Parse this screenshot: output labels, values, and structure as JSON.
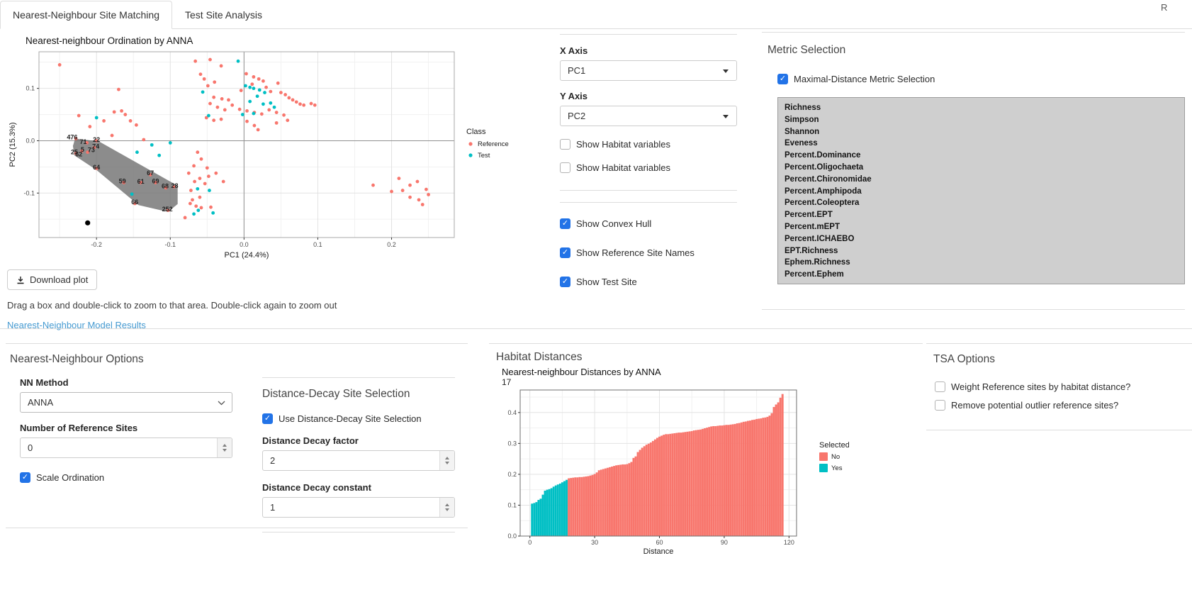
{
  "window": {
    "r_label": "R"
  },
  "tabs": [
    {
      "label": "Nearest-Neighbour Site Matching",
      "active": true
    },
    {
      "label": "Test Site Analysis",
      "active": false
    }
  ],
  "ordination": {
    "title": "Nearest-neighbour Ordination by ANNA",
    "download_button": "Download plot",
    "drag_note": "Drag a box and double-click to zoom to that area. Double-click again to zoom out",
    "results_link": "Nearest-Neighbour Model Results"
  },
  "axis_controls": {
    "x_axis_label": "X Axis",
    "x_axis_value": "PC1",
    "y_axis_label": "Y Axis",
    "y_axis_value": "PC2",
    "habitat_checkboxes": [
      {
        "label": "Show Habitat variables",
        "checked": false
      },
      {
        "label": "Show Habitat variables",
        "checked": false
      }
    ],
    "display_checkboxes": [
      {
        "label": "Show Convex Hull",
        "checked": true
      },
      {
        "label": "Show Reference Site Names",
        "checked": true
      },
      {
        "label": "Show Test Site",
        "checked": true
      }
    ]
  },
  "metric_selection": {
    "title": "Metric Selection",
    "maximal_checkbox": {
      "label": "Maximal-Distance Metric Selection",
      "checked": true
    },
    "items": [
      "Richness",
      "Simpson",
      "Shannon",
      "Eveness",
      "Percent.Dominance",
      "Percent.Oligochaeta",
      "Percent.Chironomidae",
      "Percent.Amphipoda",
      "Percent.Coleoptera",
      "Percent.EPT",
      "Percent.mEPT",
      "Percent.ICHAEBO",
      "EPT.Richness",
      "Ephem.Richness",
      "Percent.Ephem"
    ]
  },
  "nn_options": {
    "title": "Nearest-Neighbour Options",
    "nn_method_label": "NN Method",
    "nn_method_value": "ANNA",
    "n_ref_label": "Number of Reference Sites",
    "n_ref_value": "0",
    "scale_ordination": {
      "label": "Scale Ordination",
      "checked": true
    },
    "dd": {
      "title": "Distance-Decay Site Selection",
      "use_checkbox": {
        "label": "Use Distance-Decay Site Selection",
        "checked": true
      },
      "factor_label": "Distance Decay factor",
      "factor_value": "2",
      "constant_label": "Distance Decay constant",
      "constant_value": "1"
    }
  },
  "habitat_distances": {
    "title": "Habitat Distances"
  },
  "tsa_options": {
    "title": "TSA Options",
    "checkboxes": [
      {
        "label": "Weight Reference sites by habitat distance?",
        "checked": false
      },
      {
        "label": "Remove potential outlier reference sites?",
        "checked": false
      }
    ]
  },
  "colors": {
    "reference": "#F8766D",
    "test": "#00BFC4",
    "black_point": "#000000",
    "hull": "#6b6b6b",
    "checkbox_blue": "#2273e7",
    "link": "#459ad1"
  },
  "chart_data": [
    {
      "type": "scatter",
      "title": "Nearest-neighbour Ordination by ANNA",
      "xlabel": "PC1 (24.4%)",
      "ylabel": "PC2 (15.3%)",
      "xlim": [
        -0.278,
        0.285
      ],
      "ylim": [
        -0.185,
        0.17
      ],
      "xticks": [
        -0.2,
        -0.1,
        0.0,
        0.1,
        0.2
      ],
      "yticks": [
        0.1,
        0.0,
        -0.1
      ],
      "grid": true,
      "legend": {
        "title": "Class",
        "position": "right",
        "entries": [
          {
            "label": "Reference",
            "color": "#F8766D"
          },
          {
            "label": "Test",
            "color": "#00BFC4"
          }
        ]
      },
      "series": [
        {
          "name": "Reference",
          "color": "#F8766D",
          "size": 2.4,
          "points": [
            [
              -0.066,
              0.152
            ],
            [
              -0.046,
              0.155
            ],
            [
              -0.031,
              0.143
            ],
            [
              -0.059,
              0.127
            ],
            [
              -0.054,
              0.118
            ],
            [
              -0.049,
              0.105
            ],
            [
              -0.04,
              0.112
            ],
            [
              0.003,
              0.128
            ],
            [
              0.013,
              0.122
            ],
            [
              0.02,
              0.118
            ],
            [
              0.026,
              0.114
            ],
            [
              -0.004,
              0.096
            ],
            [
              0.011,
              0.108
            ],
            [
              0.03,
              0.102
            ],
            [
              0.036,
              0.094
            ],
            [
              0.046,
              0.11
            ],
            [
              0.05,
              0.092
            ],
            [
              0.056,
              0.088
            ],
            [
              0.061,
              0.082
            ],
            [
              0.066,
              0.078
            ],
            [
              0.071,
              0.074
            ],
            [
              0.076,
              0.07
            ],
            [
              0.081,
              0.068
            ],
            [
              0.091,
              0.071
            ],
            [
              0.096,
              0.068
            ],
            [
              -0.041,
              0.083
            ],
            [
              -0.03,
              0.08
            ],
            [
              -0.021,
              0.078
            ],
            [
              -0.046,
              0.071
            ],
            [
              -0.036,
              0.064
            ],
            [
              -0.026,
              0.059
            ],
            [
              -0.016,
              0.068
            ],
            [
              -0.006,
              0.06
            ],
            [
              0.004,
              0.057
            ],
            [
              0.014,
              0.054
            ],
            [
              0.024,
              0.051
            ],
            [
              0.034,
              0.059
            ],
            [
              0.044,
              0.054
            ],
            [
              0.054,
              0.049
            ],
            [
              -0.051,
              0.044
            ],
            [
              -0.041,
              0.039
            ],
            [
              -0.031,
              0.041
            ],
            [
              0.004,
              0.037
            ],
            [
              0.014,
              0.029
            ],
            [
              0.019,
              0.021
            ],
            [
              0.044,
              0.034
            ],
            [
              0.059,
              0.039
            ],
            [
              -0.25,
              0.145
            ],
            [
              -0.17,
              0.098
            ],
            [
              -0.224,
              0.048
            ],
            [
              -0.209,
              0.027
            ],
            [
              -0.19,
              0.038
            ],
            [
              -0.176,
              0.055
            ],
            [
              -0.161,
              0.05
            ],
            [
              -0.154,
              0.038
            ],
            [
              -0.166,
              0.057
            ],
            [
              -0.146,
              0.03
            ],
            [
              -0.179,
              0.01
            ],
            [
              -0.136,
              0.002
            ],
            [
              -0.063,
              -0.022
            ],
            [
              -0.058,
              -0.035
            ],
            [
              -0.068,
              -0.048
            ],
            [
              -0.05,
              -0.052
            ],
            [
              -0.038,
              -0.062
            ],
            [
              -0.048,
              -0.068
            ],
            [
              -0.06,
              -0.072
            ],
            [
              -0.075,
              -0.062
            ],
            [
              -0.067,
              -0.078
            ],
            [
              -0.053,
              -0.082
            ],
            [
              -0.028,
              -0.078
            ],
            [
              -0.072,
              -0.095
            ],
            [
              -0.06,
              -0.108
            ],
            [
              -0.07,
              -0.113
            ],
            [
              -0.073,
              -0.12
            ],
            [
              -0.065,
              -0.125
            ],
            [
              -0.058,
              -0.128
            ],
            [
              -0.045,
              -0.127
            ],
            [
              -0.08,
              -0.147
            ],
            [
              0.175,
              -0.085
            ],
            [
              0.21,
              -0.072
            ],
            [
              0.215,
              -0.095
            ],
            [
              0.225,
              -0.085
            ],
            [
              0.235,
              -0.078
            ],
            [
              0.247,
              -0.093
            ],
            [
              0.225,
              -0.108
            ],
            [
              0.237,
              -0.113
            ],
            [
              0.25,
              -0.103
            ],
            [
              0.242,
              -0.122
            ],
            [
              0.2,
              -0.097
            ],
            [
              -0.228,
              0.004
            ],
            [
              -0.213,
              -0.004
            ],
            [
              -0.2,
              0.0
            ],
            [
              -0.203,
              -0.013
            ],
            [
              -0.212,
              -0.022
            ],
            [
              -0.22,
              -0.02
            ],
            [
              -0.228,
              -0.024
            ],
            [
              -0.2,
              -0.053
            ],
            [
              -0.163,
              -0.08
            ],
            [
              -0.127,
              -0.065
            ],
            [
              -0.14,
              -0.08
            ],
            [
              -0.12,
              -0.08
            ],
            [
              -0.106,
              -0.09
            ],
            [
              -0.095,
              -0.088
            ],
            [
              -0.148,
              -0.12
            ],
            [
              -0.103,
              -0.133
            ]
          ]
        },
        {
          "name": "Test",
          "color": "#00BFC4",
          "size": 2.4,
          "points": [
            [
              -0.2,
              0.044
            ],
            [
              -0.008,
              0.152
            ],
            [
              -0.056,
              0.093
            ],
            [
              0.002,
              0.105
            ],
            [
              0.008,
              0.102
            ],
            [
              0.013,
              0.1
            ],
            [
              0.021,
              0.097
            ],
            [
              0.028,
              0.092
            ],
            [
              0.018,
              0.085
            ],
            [
              0.008,
              0.075
            ],
            [
              0.026,
              0.07
            ],
            [
              0.036,
              0.072
            ],
            [
              0.041,
              0.064
            ],
            [
              0.013,
              0.052
            ],
            [
              -0.002,
              0.05
            ],
            [
              -0.048,
              0.048
            ],
            [
              -0.125,
              -0.008
            ],
            [
              -0.1,
              -0.004
            ],
            [
              -0.145,
              -0.022
            ],
            [
              -0.115,
              -0.028
            ],
            [
              -0.152,
              -0.102
            ],
            [
              -0.063,
              -0.092
            ],
            [
              -0.047,
              -0.095
            ],
            [
              -0.062,
              -0.133
            ],
            [
              -0.068,
              -0.14
            ],
            [
              -0.042,
              -0.138
            ]
          ]
        },
        {
          "name": "TestSitePoint",
          "color": "#000000",
          "size": 3.6,
          "points": [
            [
              -0.212,
              -0.157
            ]
          ]
        }
      ],
      "hull": [
        [
          -0.229,
          0.004
        ],
        [
          -0.197,
          -0.001
        ],
        [
          -0.09,
          -0.086
        ],
        [
          -0.09,
          -0.121
        ],
        [
          -0.103,
          -0.136
        ],
        [
          -0.143,
          -0.123
        ],
        [
          -0.2,
          -0.056
        ],
        [
          -0.23,
          -0.028
        ],
        [
          -0.232,
          -0.01
        ]
      ],
      "site_labels": [
        {
          "label": "476",
          "x": -0.233,
          "y": 0.007
        },
        {
          "label": "71",
          "x": -0.218,
          "y": -0.002
        },
        {
          "label": "22",
          "x": -0.2,
          "y": 0.002
        },
        {
          "label": "74",
          "x": -0.201,
          "y": -0.011
        },
        {
          "label": "5",
          "x": -0.219,
          "y": -0.017
        },
        {
          "label": "73",
          "x": -0.207,
          "y": -0.018
        },
        {
          "label": "25",
          "x": -0.23,
          "y": -0.022
        },
        {
          "label": "62",
          "x": -0.224,
          "y": -0.026
        },
        {
          "label": "64",
          "x": -0.2,
          "y": -0.051
        },
        {
          "label": "59",
          "x": -0.165,
          "y": -0.077
        },
        {
          "label": "67",
          "x": -0.127,
          "y": -0.062
        },
        {
          "label": "61",
          "x": -0.14,
          "y": -0.078
        },
        {
          "label": "69",
          "x": -0.12,
          "y": -0.077
        },
        {
          "label": "68",
          "x": -0.107,
          "y": -0.087
        },
        {
          "label": "28",
          "x": -0.094,
          "y": -0.086
        },
        {
          "label": "66",
          "x": -0.148,
          "y": -0.117
        },
        {
          "label": "252",
          "x": -0.104,
          "y": -0.131
        }
      ]
    },
    {
      "type": "bar",
      "title": "Nearest-neighbour Distances by ANNA",
      "subtitle": "17",
      "xlabel": "Distance",
      "ylabel": "",
      "xticks": [
        0,
        30,
        60,
        90,
        120
      ],
      "yticks": [
        0.0,
        0.1,
        0.2,
        0.3,
        0.4
      ],
      "ylim": [
        0,
        0.473
      ],
      "grid": true,
      "legend": {
        "title": "Selected",
        "position": "right",
        "entries": [
          {
            "label": "No",
            "color": "#F8766D"
          },
          {
            "label": "Yes",
            "color": "#00BFC4"
          }
        ]
      },
      "selected_yes_count": 17,
      "values": [
        0.105,
        0.107,
        0.11,
        0.117,
        0.121,
        0.134,
        0.147,
        0.15,
        0.152,
        0.155,
        0.16,
        0.164,
        0.167,
        0.17,
        0.174,
        0.178,
        0.182,
        0.187,
        0.188,
        0.189,
        0.19,
        0.19,
        0.191,
        0.191,
        0.192,
        0.193,
        0.194,
        0.196,
        0.198,
        0.201,
        0.206,
        0.213,
        0.215,
        0.217,
        0.219,
        0.221,
        0.223,
        0.225,
        0.227,
        0.229,
        0.23,
        0.231,
        0.232,
        0.232,
        0.233,
        0.236,
        0.24,
        0.253,
        0.258,
        0.272,
        0.279,
        0.286,
        0.291,
        0.296,
        0.299,
        0.303,
        0.308,
        0.313,
        0.318,
        0.322,
        0.325,
        0.328,
        0.33,
        0.33,
        0.331,
        0.332,
        0.333,
        0.334,
        0.335,
        0.335,
        0.336,
        0.337,
        0.338,
        0.339,
        0.34,
        0.342,
        0.343,
        0.344,
        0.345,
        0.347,
        0.349,
        0.351,
        0.353,
        0.355,
        0.356,
        0.356,
        0.357,
        0.358,
        0.358,
        0.359,
        0.36,
        0.36,
        0.361,
        0.362,
        0.363,
        0.365,
        0.366,
        0.368,
        0.37,
        0.371,
        0.373,
        0.374,
        0.376,
        0.377,
        0.379,
        0.38,
        0.381,
        0.383,
        0.384,
        0.386,
        0.39,
        0.398,
        0.418,
        0.426,
        0.433,
        0.448,
        0.46
      ]
    }
  ]
}
